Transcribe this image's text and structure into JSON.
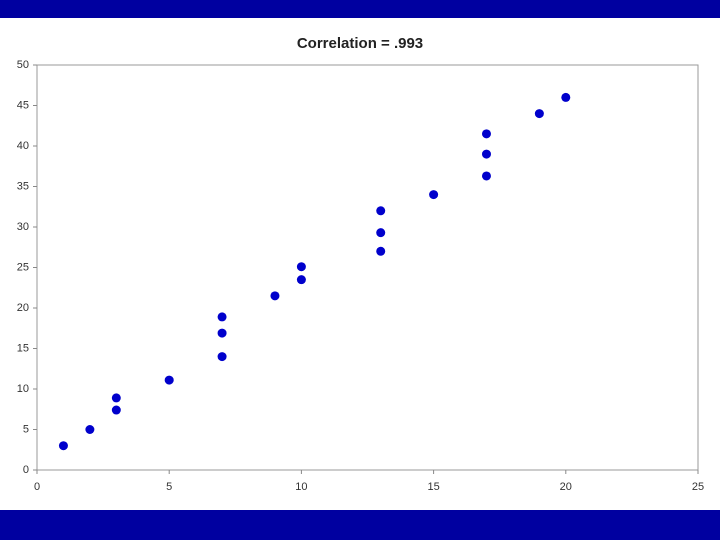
{
  "chart_data": {
    "type": "scatter",
    "title": "Correlation = .993",
    "x": [
      1,
      2,
      3,
      3,
      5,
      7,
      7,
      7,
      9,
      10,
      10,
      13,
      13,
      13,
      15,
      17,
      17,
      17,
      19,
      20
    ],
    "values": [
      3,
      5,
      8.9,
      7.4,
      11.1,
      18.9,
      16.9,
      14,
      21.5,
      25.1,
      23.5,
      32,
      29.3,
      27,
      34,
      41.5,
      39,
      36.3,
      44,
      46
    ],
    "color": "#0000cc",
    "xlim": [
      0,
      25
    ],
    "xticks": [
      0,
      5,
      10,
      15,
      20,
      25
    ],
    "ylim": [
      0,
      50
    ],
    "yticks": [
      0,
      5,
      10,
      15,
      20,
      25,
      30,
      35,
      40,
      45,
      50
    ],
    "grid": false
  }
}
